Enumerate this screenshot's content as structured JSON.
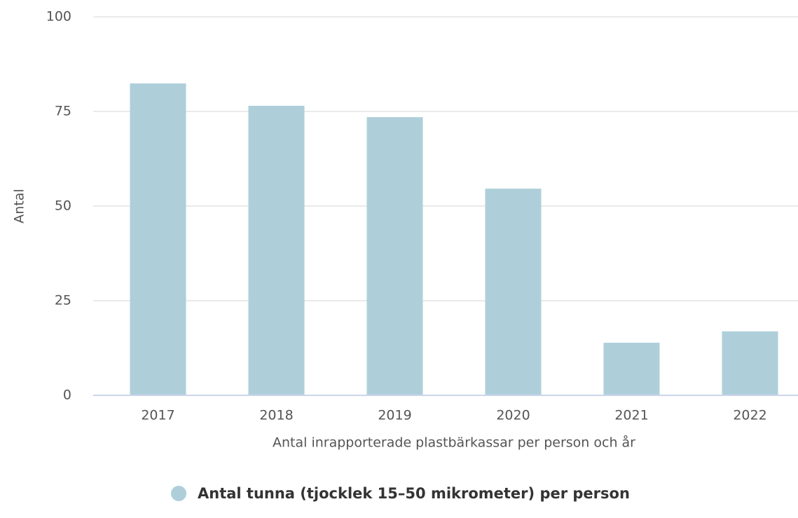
{
  "chart_data": {
    "type": "bar",
    "categories": [
      "2017",
      "2018",
      "2019",
      "2020",
      "2021",
      "2022"
    ],
    "series": [
      {
        "name": "Antal tunna (tjocklek 15–50 mikrometer) per person",
        "color": "#aecfda",
        "values": [
          82.4,
          76.5,
          73.5,
          54.6,
          13.9,
          16.9
        ]
      }
    ],
    "x_label": "Antal inrapporterade plastbärkassar per person och år",
    "y_label": "Antal",
    "ylim": [
      0,
      100
    ],
    "yticks": [
      0,
      25,
      50,
      75,
      100
    ],
    "grid": true
  }
}
